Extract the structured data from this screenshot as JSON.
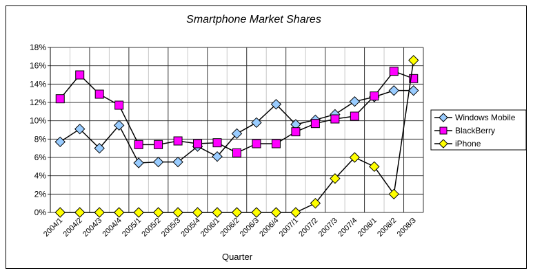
{
  "chart_data": {
    "type": "line",
    "title": "Smartphone Market Shares",
    "xlabel": "Quarter",
    "ylabel": "",
    "ylim": [
      0,
      18
    ],
    "yticks": [
      "0%",
      "2%",
      "4%",
      "6%",
      "8%",
      "10%",
      "12%",
      "14%",
      "16%",
      "18%"
    ],
    "grid": true,
    "legend_position": "right",
    "categories": [
      "2004/1",
      "2004/2",
      "2004/3",
      "2004/4",
      "2005/1",
      "2005/2",
      "2005/3",
      "2005/4",
      "2006/1",
      "2006/2",
      "2006/3",
      "2006/4",
      "2007/1",
      "2007/2",
      "2007/3",
      "2007/4",
      "2008/1",
      "2008/2",
      "2008/3"
    ],
    "series": [
      {
        "name": "Windows Mobile",
        "marker": "diamond",
        "color": "#99ccff",
        "values": [
          7.7,
          9.1,
          7.0,
          9.5,
          5.4,
          5.5,
          5.5,
          7.2,
          6.1,
          8.6,
          9.8,
          11.8,
          9.6,
          10.1,
          10.7,
          12.1,
          12.6,
          13.3,
          13.3
        ]
      },
      {
        "name": "BlackBerry",
        "marker": "square",
        "color": "#ff00ff",
        "values": [
          12.4,
          15.0,
          12.9,
          11.7,
          7.4,
          7.4,
          7.8,
          7.5,
          7.6,
          6.5,
          7.5,
          7.5,
          8.8,
          9.7,
          10.2,
          10.5,
          12.7,
          15.4,
          14.6
        ]
      },
      {
        "name": "iPhone",
        "marker": "diamond",
        "color": "#ffff00",
        "values": [
          0,
          0,
          0,
          0,
          0,
          0,
          0,
          0,
          0,
          0,
          0,
          0,
          0,
          1.0,
          3.7,
          6.0,
          5.0,
          2.0,
          16.6
        ]
      }
    ]
  }
}
